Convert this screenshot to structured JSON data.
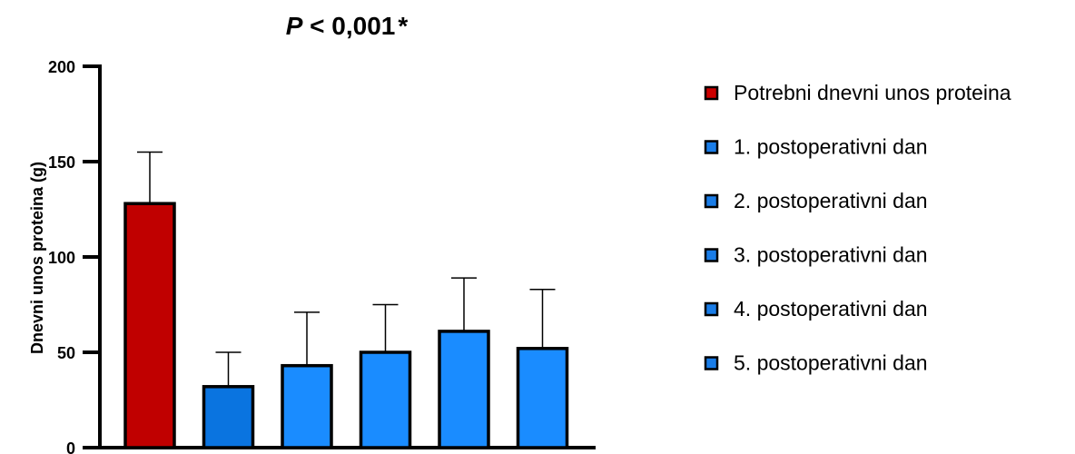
{
  "chart_data": {
    "type": "bar",
    "title_italic": "P",
    "title_rest": " < 0,001",
    "title_star": "*",
    "xlabel": "",
    "ylabel": "Dnevni unos proteina (g)",
    "ylim": [
      0,
      200
    ],
    "yticks": [
      "0",
      "50",
      "100",
      "150",
      "200"
    ],
    "grid": false,
    "legend_position": "right",
    "categories": [
      "Potrebni dnevni unos proteina",
      "1. postoperativni dan",
      "2. postoperativni dan",
      "3. postoperativni dan",
      "4. postoperativni dan",
      "5. postoperativni dan"
    ],
    "values": [
      128,
      32,
      43,
      50,
      61,
      52
    ],
    "error_upper": [
      155,
      50,
      71,
      75,
      89,
      83
    ],
    "colors": [
      "#c00000",
      "#0a74e0",
      "#1a8cff",
      "#1a8cff",
      "#1a8cff",
      "#1a8cff"
    ],
    "legend_colors": [
      "#cc0000",
      "#1a7de8",
      "#1a7de8",
      "#1a7de8",
      "#1a7de8",
      "#1a7de8"
    ]
  }
}
